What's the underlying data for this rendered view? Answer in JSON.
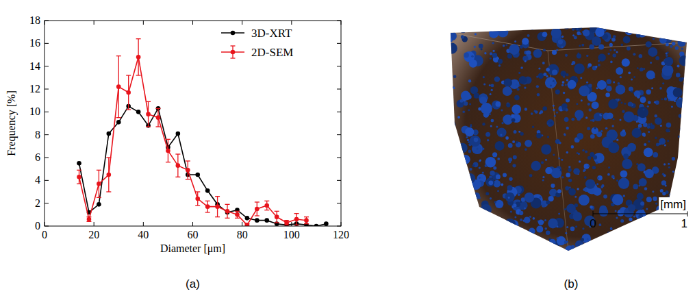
{
  "chart_data": {
    "type": "line",
    "x_label": "Diameter [μm]",
    "y_label": "Frequency [%]",
    "x": [
      14,
      18,
      22,
      26,
      30,
      34,
      38,
      42,
      46,
      50,
      54,
      58,
      62,
      66,
      70,
      74,
      78,
      82,
      86,
      90,
      94,
      98,
      102,
      106,
      110,
      114
    ],
    "series": [
      {
        "name": "3D-XRT",
        "color": "#000000",
        "marker": "circle",
        "line_style": "solid",
        "values": [
          5.5,
          1.2,
          1.9,
          8.1,
          9.1,
          10.5,
          10.0,
          8.8,
          10.3,
          6.9,
          8.1,
          4.5,
          4.5,
          3.1,
          1.9,
          1.2,
          1.4,
          0.7,
          0.5,
          0.5,
          0.2,
          0.1,
          0.2,
          0.1,
          0.0,
          0.2
        ]
      },
      {
        "name": "2D-SEM",
        "color": "#e8141c",
        "marker": "circle",
        "line_style": "solid",
        "values": [
          4.3,
          0.6,
          3.7,
          4.5,
          12.2,
          11.7,
          14.8,
          9.8,
          9.5,
          6.6,
          5.3,
          4.9,
          2.4,
          1.7,
          1.7,
          1.3,
          1.0,
          0.1,
          1.5,
          1.8,
          0.8,
          0.3,
          0.6,
          0.5,
          null,
          null
        ],
        "error": [
          0.6,
          0.2,
          1.2,
          1.5,
          2.7,
          1.5,
          1.6,
          1.1,
          0.8,
          1.0,
          1.0,
          0.8,
          0.6,
          0.5,
          0.9,
          0.6,
          0.3,
          0.1,
          0.6,
          0.4,
          0.5,
          0.2,
          0.5,
          0.3,
          null,
          null
        ]
      }
    ],
    "xlim": [
      0,
      120
    ],
    "xticks": [
      0,
      20,
      40,
      60,
      80,
      100,
      120
    ],
    "ylim": [
      0,
      18
    ],
    "yticks": [
      0,
      2,
      4,
      6,
      8,
      10,
      12,
      14,
      16,
      18
    ],
    "legend": "upper right",
    "grid": false
  },
  "figure": {
    "panel_labels": [
      "(a)",
      "(b)"
    ],
    "scale_bar": {
      "unit": "[mm]",
      "ticks": [
        0,
        1
      ]
    }
  }
}
